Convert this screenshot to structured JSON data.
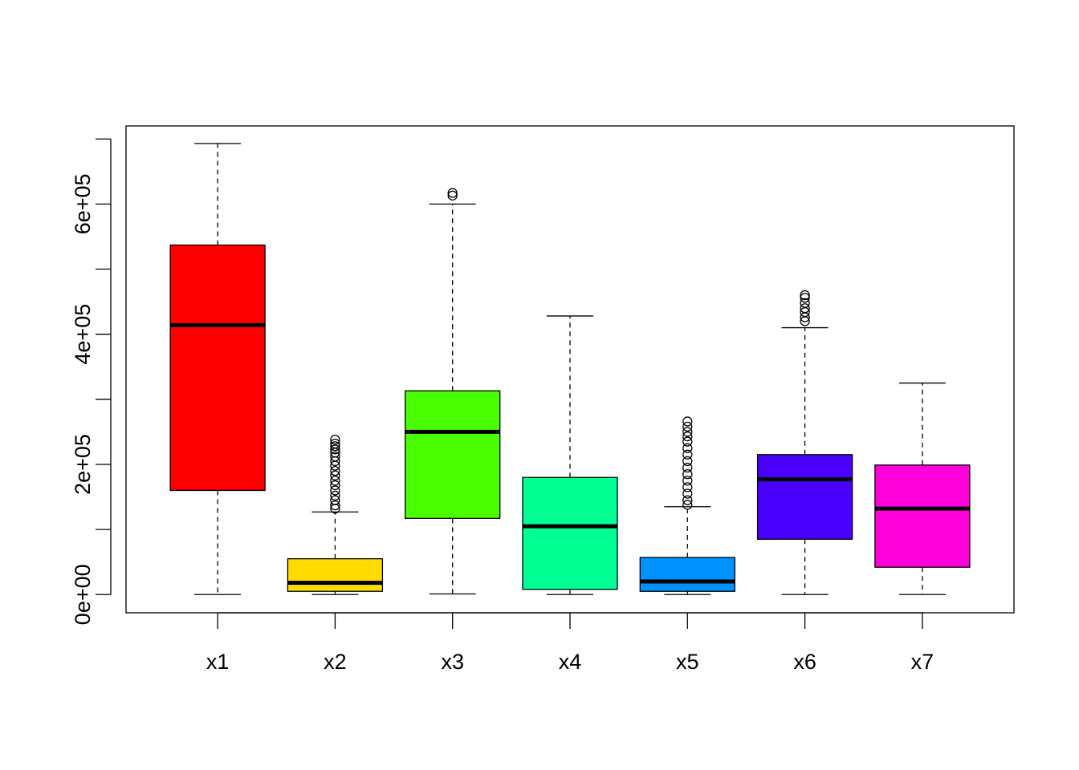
{
  "chart_data": {
    "type": "box",
    "title": "",
    "xlabel": "",
    "ylabel": "",
    "ylim": [
      -28000,
      720000
    ],
    "y_ticks": [
      {
        "value": 0,
        "label": "0e+00"
      },
      {
        "value": 100000,
        "label": ""
      },
      {
        "value": 200000,
        "label": "2e+05"
      },
      {
        "value": 300000,
        "label": ""
      },
      {
        "value": 400000,
        "label": "4e+05"
      },
      {
        "value": 500000,
        "label": ""
      },
      {
        "value": 600000,
        "label": "6e+05"
      },
      {
        "value": 700000,
        "label": ""
      }
    ],
    "categories": [
      "x1",
      "x2",
      "x3",
      "x4",
      "x5",
      "x6",
      "x7"
    ],
    "boxes": [
      {
        "name": "x1",
        "color": "#ff0000",
        "min": 0,
        "q1": 160000,
        "median": 414000,
        "q3": 537000,
        "max": 693000,
        "outliers": []
      },
      {
        "name": "x2",
        "color": "#ffdb00",
        "min": 0,
        "q1": 5000,
        "median": 18000,
        "q3": 55000,
        "max": 127000,
        "outliers": [
          132000,
          137000,
          145000,
          152000,
          160000,
          168000,
          175000,
          183000,
          190000,
          198000,
          205000,
          212000,
          218000,
          223000,
          228000,
          232000,
          238000
        ]
      },
      {
        "name": "x3",
        "color": "#49ff00",
        "min": 1000,
        "q1": 117000,
        "median": 250000,
        "q3": 313000,
        "max": 600000,
        "outliers": [
          613000,
          617000
        ]
      },
      {
        "name": "x4",
        "color": "#00ff92",
        "min": 0,
        "q1": 8000,
        "median": 105000,
        "q3": 180000,
        "max": 428000,
        "outliers": []
      },
      {
        "name": "x5",
        "color": "#0092ff",
        "min": 0,
        "q1": 5000,
        "median": 20000,
        "q3": 57000,
        "max": 135000,
        "outliers": [
          138000,
          145000,
          155000,
          165000,
          175000,
          185000,
          195000,
          205000,
          215000,
          225000,
          235000,
          243000,
          250000,
          258000,
          266000
        ]
      },
      {
        "name": "x6",
        "color": "#4900ff",
        "min": 0,
        "q1": 85000,
        "median": 177000,
        "q3": 215000,
        "max": 410000,
        "outliers": [
          420000,
          426000,
          434000,
          440000,
          448000,
          456000,
          460000
        ]
      },
      {
        "name": "x7",
        "color": "#ff00db",
        "min": 0,
        "q1": 42000,
        "median": 132000,
        "q3": 199000,
        "max": 325000,
        "outliers": []
      }
    ],
    "grid": false,
    "legend": "none"
  }
}
